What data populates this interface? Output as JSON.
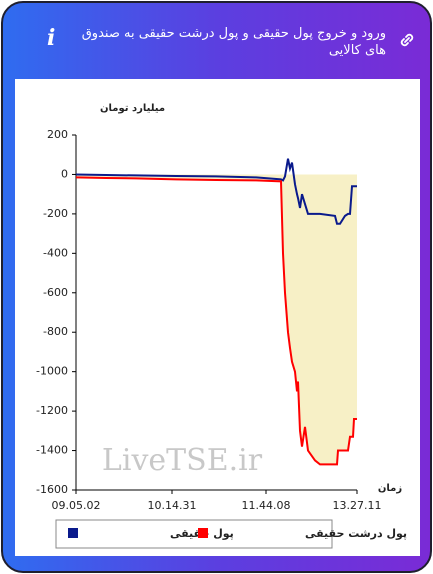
{
  "header": {
    "title": "ورود و خروج پول حقیقی و پول درشت حقیقی به صندوق های کالایی"
  },
  "chart_data": {
    "type": "line",
    "y_label": "میلیارد تومان",
    "x_label": "زمان",
    "watermark": "LiveTSE.ir",
    "x": [
      0,
      30,
      60,
      100,
      140,
      180,
      205,
      207,
      209,
      212,
      214,
      216,
      219,
      221,
      222,
      224,
      226,
      229,
      232,
      239,
      244,
      259,
      261,
      262,
      264,
      269,
      272,
      274,
      276,
      277,
      278,
      281
    ],
    "xlim": [
      0,
      281
    ],
    "xticks": [
      {
        "value": 0,
        "label": "09.05.02"
      },
      {
        "value": 96,
        "label": "10.14.31"
      },
      {
        "value": 190,
        "label": "11.44.08"
      },
      {
        "value": 281,
        "label": "13.27.11"
      }
    ],
    "ylim": [
      -1600,
      200
    ],
    "yticks": [
      200,
      0,
      -200,
      -400,
      -600,
      -800,
      -1000,
      -1200,
      -1400,
      -1600
    ],
    "shade_color": "#f7f0c6",
    "series": [
      {
        "name": "پول حقیقی",
        "color": "#0a1a8c",
        "values": [
          0,
          -3,
          -5,
          -8,
          -10,
          -15,
          -25,
          -30,
          -10,
          80,
          30,
          60,
          -50,
          -100,
          -120,
          -170,
          -100,
          -150,
          -200,
          -200,
          -200,
          -210,
          -250,
          -250,
          -250,
          -210,
          -200,
          -200,
          -60,
          -60,
          -60,
          -60
        ]
      },
      {
        "name": "پول درشت حقیقی",
        "color": "#ff0000",
        "values": [
          -15,
          -18,
          -20,
          -25,
          -28,
          -30,
          -35,
          -400,
          -600,
          -800,
          -880,
          -950,
          -1000,
          -1100,
          -1050,
          -1300,
          -1380,
          -1280,
          -1400,
          -1450,
          -1470,
          -1470,
          -1470,
          -1400,
          -1400,
          -1400,
          -1400,
          -1330,
          -1330,
          -1330,
          -1240,
          -1240
        ]
      }
    ]
  }
}
